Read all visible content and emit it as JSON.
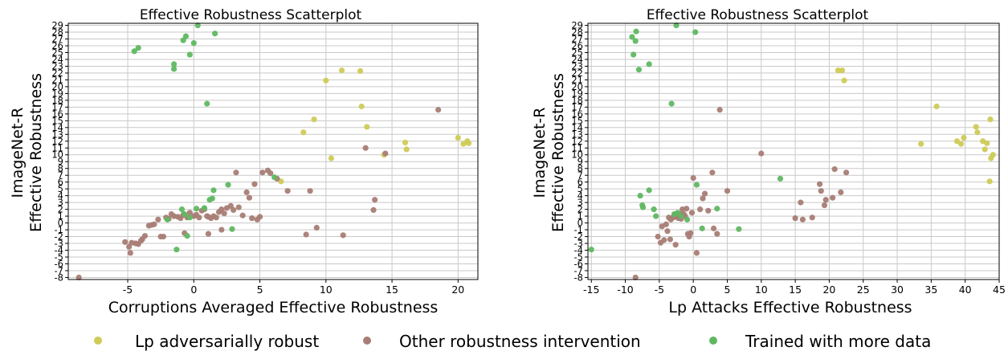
{
  "legend": [
    {
      "name": "Lp adversarially robust",
      "color": "#cfcb57"
    },
    {
      "name": "Other robustness intervention",
      "color": "#a87d75"
    },
    {
      "name": "Trained with more data",
      "color": "#5fb861"
    }
  ],
  "chart_data": [
    {
      "type": "scatter",
      "title": "Effective Robustness Scatterplot",
      "xlabel": "Corruptions Averaged Effective Robustness",
      "ylabel": [
        "ImageNet-R",
        "Effective Robustness"
      ],
      "xlim": [
        -9.5,
        21.5
      ],
      "ylim": [
        -8.3,
        29.3
      ],
      "xticks": [
        -5,
        0,
        5,
        10,
        15,
        20
      ],
      "yticks": [
        -8,
        -7,
        -6,
        -5,
        -4,
        -3,
        -2,
        -1,
        0,
        1,
        2,
        3,
        4,
        5,
        6,
        7,
        8,
        9,
        10,
        11,
        12,
        13,
        14,
        15,
        16,
        17,
        18,
        19,
        20,
        21,
        22,
        23,
        24,
        25,
        26,
        27,
        28,
        29
      ],
      "grid": true,
      "series": [
        {
          "name": "Lp adversarially robust",
          "color": "#cfcb57",
          "points": [
            [
              10,
              20.9
            ],
            [
              11.2,
              22.4
            ],
            [
              12.6,
              22.3
            ],
            [
              12.7,
              17.1
            ],
            [
              13.1,
              14.1
            ],
            [
              9.1,
              15.2
            ],
            [
              8.3,
              13.3
            ],
            [
              10.4,
              9.5
            ],
            [
              14.4,
              10.0
            ],
            [
              16.0,
              11.8
            ],
            [
              16.1,
              10.8
            ],
            [
              20,
              12.5
            ],
            [
              20.4,
              11.6
            ],
            [
              20.7,
              12.0
            ],
            [
              20.8,
              11.7
            ],
            [
              6.6,
              6.1
            ]
          ]
        },
        {
          "name": "Other robustness intervention",
          "color": "#a87d75",
          "points": [
            [
              -8.7,
              -8
            ],
            [
              -5.2,
              -2.8
            ],
            [
              -4.9,
              -3.5
            ],
            [
              -4.8,
              -4.4
            ],
            [
              -4.7,
              -2.9
            ],
            [
              -4.4,
              -3.0
            ],
            [
              -4.2,
              -3.1
            ],
            [
              -4.0,
              -2.6
            ],
            [
              -3.9,
              -2.4
            ],
            [
              -3.7,
              -1.9
            ],
            [
              -3.4,
              -0.4
            ],
            [
              -3.2,
              -0.3
            ],
            [
              -3.0,
              -0.2
            ],
            [
              -2.7,
              0.5
            ],
            [
              -2.5,
              -2.0
            ],
            [
              -2.3,
              -2.0
            ],
            [
              -2.1,
              0.8
            ],
            [
              -1.9,
              0.6
            ],
            [
              -1.7,
              1.3
            ],
            [
              -1.5,
              1.0
            ],
            [
              -1.2,
              0.9
            ],
            [
              -1.0,
              0.7
            ],
            [
              -0.8,
              1.2
            ],
            [
              -0.5,
              0.8
            ],
            [
              -0.3,
              1.5
            ],
            [
              0.0,
              1.0
            ],
            [
              0.2,
              1.2
            ],
            [
              0.4,
              0.8
            ],
            [
              0.6,
              1.8
            ],
            [
              0.8,
              2.0
            ],
            [
              1.0,
              1.0
            ],
            [
              1.1,
              0.9
            ],
            [
              1.3,
              0.7
            ],
            [
              1.5,
              1.0
            ],
            [
              1.7,
              0.8
            ],
            [
              1.9,
              1.6
            ],
            [
              2.1,
              2.0
            ],
            [
              2.3,
              1.4
            ],
            [
              2.5,
              2.2
            ],
            [
              2.8,
              2.5
            ],
            [
              3.0,
              1.9
            ],
            [
              3.2,
              7.4
            ],
            [
              3.4,
              2.3
            ],
            [
              3.7,
              1.1
            ],
            [
              4.0,
              4.5
            ],
            [
              4.2,
              3.7
            ],
            [
              4.4,
              0.7
            ],
            [
              4.6,
              5.7
            ],
            [
              4.8,
              0.5
            ],
            [
              5.0,
              0.9
            ],
            [
              5.2,
              7.4
            ],
            [
              5.6,
              7.7
            ],
            [
              5.8,
              7.3
            ],
            [
              6.3,
              6.5
            ],
            [
              7.1,
              4.7
            ],
            [
              8.5,
              -1.7
            ],
            [
              8.8,
              4.7
            ],
            [
              9.3,
              -0.7
            ],
            [
              11.3,
              -1.8
            ],
            [
              13.0,
              11.0
            ],
            [
              13.7,
              3.4
            ],
            [
              13.6,
              1.9
            ],
            [
              14.5,
              10.2
            ],
            [
              18.5,
              16.6
            ],
            [
              1.1,
              -1.6
            ],
            [
              2.1,
              -1.0
            ],
            [
              -0.7,
              -1.5
            ]
          ]
        },
        {
          "name": "Trained with more data",
          "color": "#5fb861",
          "points": [
            [
              -4.5,
              25.2
            ],
            [
              -4.2,
              25.7
            ],
            [
              -1.5,
              23.3
            ],
            [
              -1.5,
              22.6
            ],
            [
              -0.8,
              26.8
            ],
            [
              -0.6,
              27.4
            ],
            [
              -0.3,
              24.7
            ],
            [
              0.0,
              26.4
            ],
            [
              0.3,
              29.0
            ],
            [
              1.6,
              27.8
            ],
            [
              1.0,
              17.5
            ],
            [
              -1.3,
              -3.9
            ],
            [
              -0.5,
              -1.9
            ],
            [
              -0.9,
              2.0
            ],
            [
              -0.7,
              1.3
            ],
            [
              -0.3,
              0.8
            ],
            [
              0.2,
              2.1
            ],
            [
              0.8,
              2.2
            ],
            [
              1.2,
              3.4
            ],
            [
              1.4,
              3.6
            ],
            [
              1.5,
              4.8
            ],
            [
              2.6,
              5.6
            ],
            [
              2.9,
              -0.9
            ],
            [
              6.1,
              6.7
            ],
            [
              -2.0,
              0.5
            ]
          ]
        }
      ]
    },
    {
      "type": "scatter",
      "title": "Effective Robustness Scatterplot",
      "xlabel": "Lp Attacks Effective Robustness",
      "ylabel": [
        "ImageNet-R",
        "Effective Robustness"
      ],
      "xlim": [
        -15.5,
        45
      ],
      "ylim": [
        -8.3,
        29.3
      ],
      "xticks": [
        -15,
        -10,
        -5,
        0,
        5,
        10,
        15,
        20,
        25,
        30,
        35,
        40,
        45
      ],
      "yticks": [
        -8,
        -7,
        -6,
        -5,
        -4,
        -3,
        -2,
        -1,
        0,
        1,
        2,
        3,
        4,
        5,
        6,
        7,
        8,
        9,
        10,
        11,
        12,
        13,
        14,
        15,
        16,
        17,
        18,
        19,
        20,
        21,
        22,
        23,
        24,
        25,
        26,
        27,
        28,
        29
      ],
      "grid": true,
      "series": [
        {
          "name": "Lp adversarially robust",
          "color": "#cfcb57",
          "points": [
            [
              21.3,
              22.4
            ],
            [
              21.9,
              22.4
            ],
            [
              22.2,
              20.9
            ],
            [
              35.8,
              17.1
            ],
            [
              33.5,
              11.6
            ],
            [
              38.8,
              12.0
            ],
            [
              39.4,
              11.6
            ],
            [
              39.8,
              12.5
            ],
            [
              41.6,
              14.1
            ],
            [
              41.8,
              13.3
            ],
            [
              42.6,
              12.0
            ],
            [
              42.9,
              10.8
            ],
            [
              43.2,
              11.7
            ],
            [
              43.7,
              15.2
            ],
            [
              43.8,
              9.5
            ],
            [
              44.1,
              10.0
            ],
            [
              43.6,
              6.1
            ]
          ]
        },
        {
          "name": "Other robustness intervention",
          "color": "#a87d75",
          "points": [
            [
              -8.5,
              -8
            ],
            [
              -5.2,
              -2.0
            ],
            [
              -4.8,
              -2.9
            ],
            [
              -4.6,
              -0.5
            ],
            [
              -4.3,
              -2.5
            ],
            [
              -4.0,
              -0.2
            ],
            [
              -3.8,
              -1.2
            ],
            [
              -3.6,
              0.8
            ],
            [
              -3.3,
              0.5
            ],
            [
              -3.0,
              0.8
            ],
            [
              -2.8,
              1.2
            ],
            [
              -2.6,
              0.9
            ],
            [
              -2.4,
              1.2
            ],
            [
              -2.2,
              0.7
            ],
            [
              -2.0,
              1.3
            ],
            [
              -1.8,
              0.6
            ],
            [
              -1.6,
              2.0
            ],
            [
              -1.4,
              1.3
            ],
            [
              -1.2,
              1.0
            ],
            [
              -1.0,
              2.1
            ],
            [
              -0.8,
              -1.6
            ],
            [
              -0.6,
              -2.0
            ],
            [
              -0.4,
              -1.5
            ],
            [
              -0.2,
              1.5
            ],
            [
              0.0,
              6.6
            ],
            [
              0.5,
              -4.4
            ],
            [
              1.0,
              2.0
            ],
            [
              1.4,
              3.6
            ],
            [
              1.7,
              4.3
            ],
            [
              2.2,
              1.8
            ],
            [
              2.8,
              7.4
            ],
            [
              3.0,
              -0.8
            ],
            [
              3.5,
              -1.6
            ],
            [
              3.9,
              16.6
            ],
            [
              5.0,
              4.7
            ],
            [
              10.0,
              10.2
            ],
            [
              15.0,
              0.7
            ],
            [
              15.8,
              3.0
            ],
            [
              16.1,
              0.5
            ],
            [
              17.5,
              0.8
            ],
            [
              18.6,
              5.7
            ],
            [
              18.8,
              4.7
            ],
            [
              19.3,
              2.6
            ],
            [
              19.5,
              3.4
            ],
            [
              20.5,
              3.7
            ],
            [
              20.8,
              7.9
            ],
            [
              21.7,
              4.5
            ],
            [
              22.5,
              7.4
            ],
            [
              -2.6,
              -3.2
            ],
            [
              -3.4,
              -2.4
            ]
          ]
        },
        {
          "name": "Trained with more data",
          "color": "#5fb861",
          "points": [
            [
              -15.0,
              -3.9
            ],
            [
              -9.0,
              27.3
            ],
            [
              -8.5,
              26.7
            ],
            [
              -8.4,
              28.1
            ],
            [
              -8.8,
              24.7
            ],
            [
              -8.0,
              22.5
            ],
            [
              -6.5,
              23.3
            ],
            [
              -2.5,
              29.0
            ],
            [
              0.3,
              28.0
            ],
            [
              -3.2,
              17.5
            ],
            [
              -7.8,
              4.0
            ],
            [
              -7.5,
              2.6
            ],
            [
              -7.4,
              2.3
            ],
            [
              -6.5,
              4.8
            ],
            [
              -5.8,
              2.0
            ],
            [
              -5.5,
              1.0
            ],
            [
              -2.8,
              1.3
            ],
            [
              -2.3,
              1.5
            ],
            [
              -1.8,
              1.0
            ],
            [
              -0.9,
              0.5
            ],
            [
              0.5,
              5.6
            ],
            [
              1.3,
              -0.8
            ],
            [
              3.5,
              2.1
            ],
            [
              6.7,
              -0.9
            ],
            [
              12.8,
              6.5
            ]
          ]
        }
      ]
    }
  ]
}
